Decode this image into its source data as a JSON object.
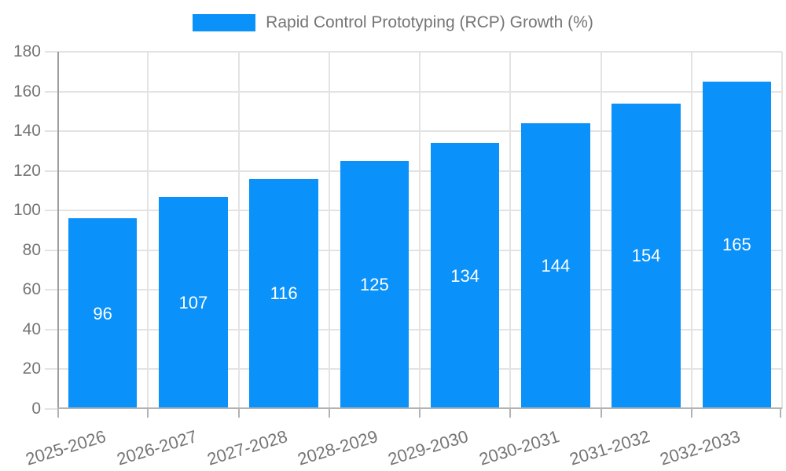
{
  "chart_data": {
    "type": "bar",
    "title": "Rapid Control Prototyping (RCP) Growth (%)",
    "categories": [
      "2025-2026",
      "2026-2027",
      "2027-2028",
      "2028-2029",
      "2029-2030",
      "2030-2031",
      "2031-2032",
      "2032-2033"
    ],
    "series": [
      {
        "name": "Rapid Control Prototyping (RCP) Growth (%)",
        "values": [
          96,
          107,
          116,
          125,
          134,
          144,
          154,
          165
        ]
      }
    ],
    "value_labels": [
      "96",
      "107",
      "116",
      "125",
      "134",
      "144",
      "154",
      "165"
    ],
    "xlabel": "",
    "ylabel": "",
    "ylim": [
      0,
      180
    ],
    "y_ticks": [
      0,
      20,
      40,
      60,
      80,
      100,
      120,
      140,
      160,
      180
    ],
    "grid": true,
    "legend_position": "top-center",
    "colors": {
      "bar": "#0a91fa",
      "value_label": "#ffffff",
      "axis_text": "#757575",
      "grid_line": "#e3e3e3",
      "y_axis_line": "#9e9e9e",
      "x_axis_line": "#b3b3b3",
      "background": "#ffffff"
    }
  }
}
